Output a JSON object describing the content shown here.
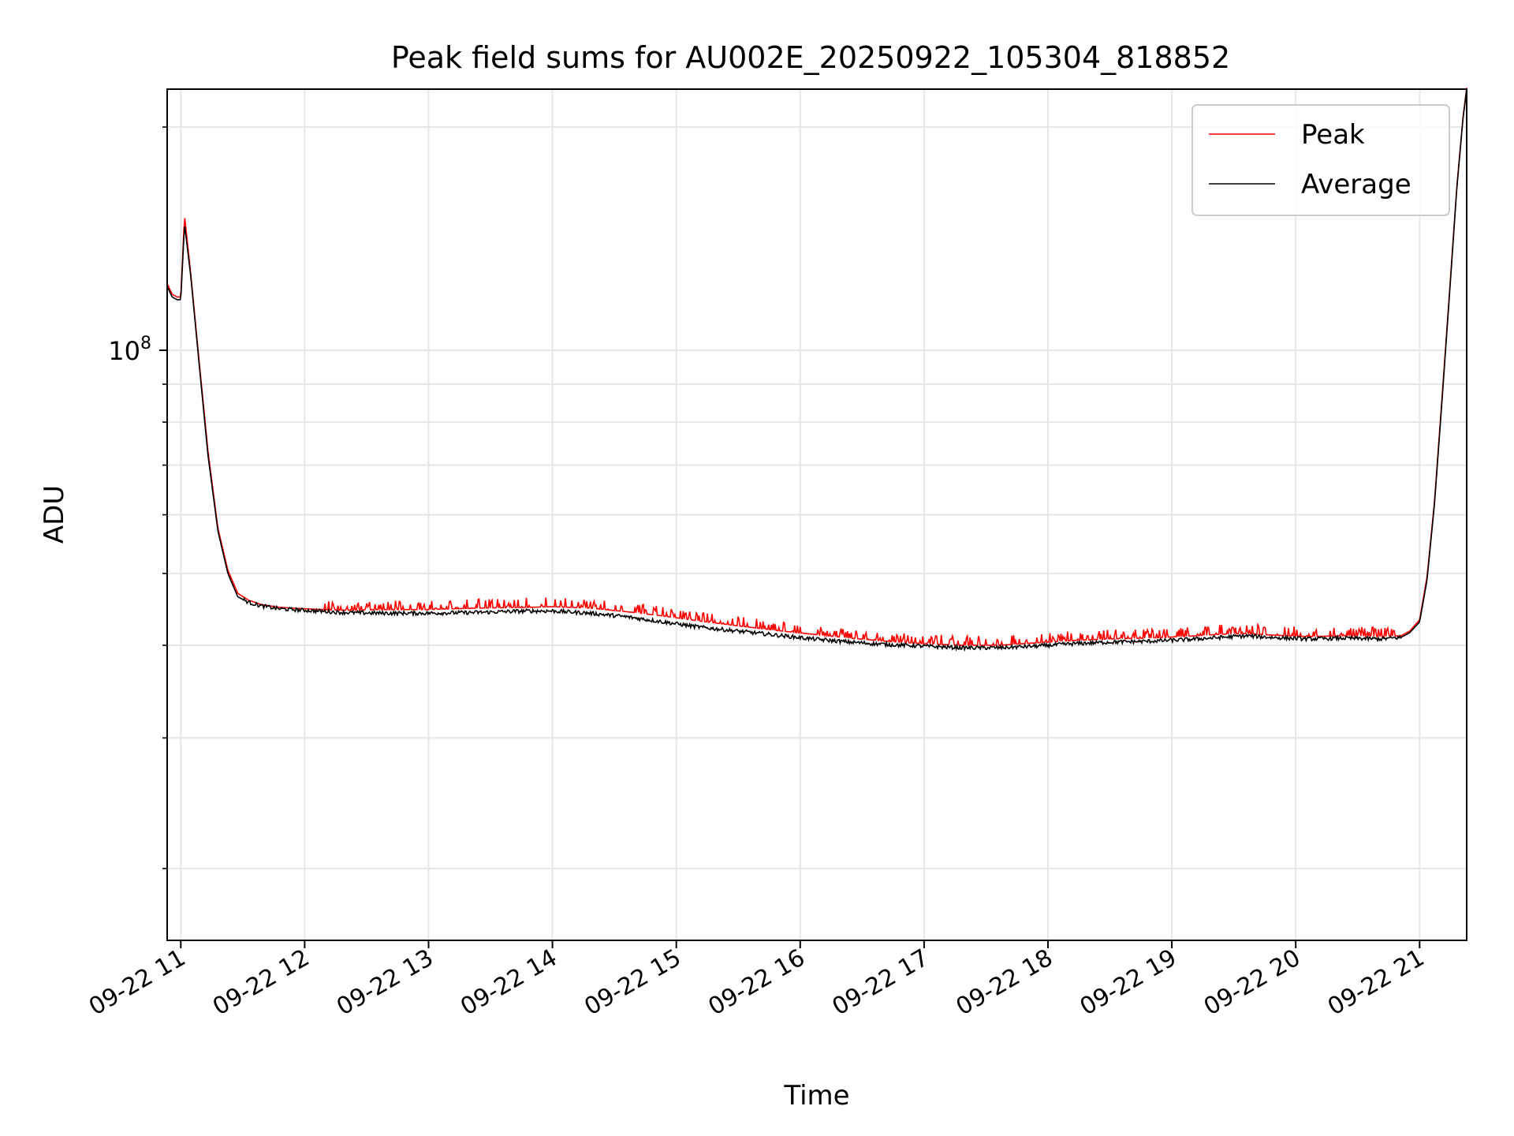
{
  "colors": {
    "peak": "#ff0000",
    "average": "#000000",
    "grid": "#e6e6e6",
    "axes": "#000000",
    "legend_border": "#cccccc"
  },
  "chart_data": {
    "type": "line",
    "title": "Peak field sums for AU002E_20250922_105304_818852",
    "xlabel": "Time",
    "ylabel": "ADU",
    "yscale": "log",
    "ylim": [
      16000000,
      225000000
    ],
    "xlim": [
      10.89,
      21.38
    ],
    "x_unit": "hour of day",
    "x_ticks": [
      {
        "value": 11,
        "label": "09-22 11"
      },
      {
        "value": 12,
        "label": "09-22 12"
      },
      {
        "value": 13,
        "label": "09-22 13"
      },
      {
        "value": 14,
        "label": "09-22 14"
      },
      {
        "value": 15,
        "label": "09-22 15"
      },
      {
        "value": 16,
        "label": "09-22 16"
      },
      {
        "value": 17,
        "label": "09-22 17"
      },
      {
        "value": 18,
        "label": "09-22 18"
      },
      {
        "value": 19,
        "label": "09-22 19"
      },
      {
        "value": 20,
        "label": "09-22 20"
      },
      {
        "value": 21,
        "label": "09-22 21"
      }
    ],
    "y_major_ticks": [
      {
        "value": 100000000,
        "base": "10",
        "exp": "8"
      }
    ],
    "y_minor_ticks": [
      20000000,
      30000000,
      40000000,
      50000000,
      60000000,
      70000000,
      80000000,
      90000000,
      200000000
    ],
    "grid": true,
    "legend": {
      "placement": "top-right",
      "entries": [
        "Peak",
        "Average"
      ]
    },
    "series": [
      {
        "name": "Average",
        "x": [
          10.89,
          10.93,
          10.97,
          11.0,
          11.03,
          11.08,
          11.15,
          11.22,
          11.3,
          11.38,
          11.46,
          11.55,
          11.65,
          11.8,
          12.0,
          12.3,
          12.6,
          13.0,
          13.4,
          13.8,
          14.0,
          14.3,
          14.6,
          14.9,
          15.2,
          15.5,
          15.8,
          16.1,
          16.4,
          16.7,
          17.0,
          17.3,
          17.6,
          17.9,
          18.2,
          18.5,
          18.8,
          19.1,
          19.4,
          19.6,
          19.8,
          20.1,
          20.4,
          20.7,
          20.85,
          20.92,
          21.0,
          21.06,
          21.12,
          21.18,
          21.24,
          21.3,
          21.35,
          21.38
        ],
        "y": [
          122000000,
          118000000,
          117000000,
          117000000,
          148000000,
          126000000,
          95000000,
          72000000,
          57000000,
          50000000,
          46500000,
          45700000,
          45200000,
          44800000,
          44600000,
          44300000,
          44200000,
          44200000,
          44300000,
          44500000,
          44500000,
          44200000,
          43700000,
          43000000,
          42300000,
          41800000,
          41300000,
          40800000,
          40400000,
          40100000,
          39900000,
          39700000,
          39700000,
          39900000,
          40200000,
          40400000,
          40500000,
          40700000,
          41000000,
          41200000,
          41000000,
          40800000,
          40900000,
          40800000,
          41000000,
          41600000,
          43000000,
          49000000,
          62000000,
          85000000,
          118000000,
          165000000,
          205000000,
          225000000
        ]
      },
      {
        "name": "Peak",
        "x": [
          10.89,
          10.93,
          10.97,
          11.0,
          11.03,
          11.08,
          11.15,
          11.22,
          11.3,
          11.38,
          11.46,
          11.55,
          11.65,
          11.8,
          12.0,
          12.3,
          12.6,
          13.0,
          13.4,
          13.8,
          14.0,
          14.3,
          14.6,
          14.9,
          15.2,
          15.5,
          15.8,
          16.1,
          16.4,
          16.7,
          17.0,
          17.3,
          17.6,
          17.9,
          18.2,
          18.5,
          18.8,
          19.1,
          19.4,
          19.6,
          19.8,
          20.1,
          20.4,
          20.7,
          20.85,
          20.92,
          21.0,
          21.06,
          21.12,
          21.18,
          21.24,
          21.3,
          21.35,
          21.38
        ],
        "y": [
          123000000,
          119000000,
          118000000,
          118000000,
          152000000,
          127000000,
          96000000,
          73000000,
          57500000,
          50500000,
          47000000,
          46000000,
          45400000,
          45000000,
          44800000,
          44600000,
          44700000,
          44700000,
          44900000,
          45000000,
          45100000,
          44900000,
          44400000,
          43800000,
          43100000,
          42500000,
          41900000,
          41400000,
          40900000,
          40500000,
          40200000,
          40000000,
          40000000,
          40300000,
          40600000,
          40800000,
          40900000,
          41100000,
          41400000,
          41500000,
          41300000,
          41100000,
          41200000,
          41100000,
          41200000,
          41800000,
          43300000,
          49500000,
          62500000,
          86000000,
          119000000,
          166000000,
          206000000,
          226000000
        ]
      }
    ],
    "peak_spike_region": {
      "x_start": 12.15,
      "x_end": 20.8,
      "max_excess_fraction": 0.03
    }
  }
}
